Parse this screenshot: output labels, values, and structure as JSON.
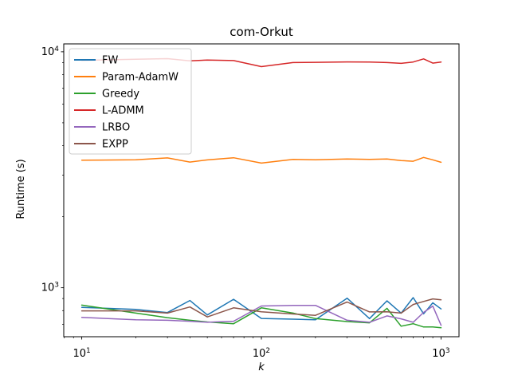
{
  "title": "com-Orkut",
  "chart_data": {
    "type": "line",
    "title": "com-Orkut",
    "xlabel": "k",
    "ylabel": "Runtime (s)",
    "xscale": "log",
    "yscale": "log",
    "xlim": [
      7.94,
      1259
    ],
    "ylim": [
      620,
      10800
    ],
    "grid": false,
    "legend_position": "upper left",
    "x": [
      10,
      20,
      30,
      40,
      50,
      70,
      100,
      150,
      200,
      300,
      400,
      500,
      600,
      700,
      800,
      900,
      1000
    ],
    "series": [
      {
        "name": "FW",
        "color": "#1f77b4",
        "values": [
          826,
          809,
          785,
          883,
          767,
          893,
          741,
          736,
          731,
          903,
          740,
          880,
          781,
          908,
          775,
          863,
          813
        ]
      },
      {
        "name": "Param-AdamW",
        "color": "#ff7f0e",
        "values": [
          3470,
          3485,
          3550,
          3410,
          3480,
          3555,
          3375,
          3500,
          3485,
          3515,
          3500,
          3515,
          3460,
          3435,
          3565,
          3485,
          3400
        ]
      },
      {
        "name": "Greedy",
        "color": "#2ca02c",
        "values": [
          844,
          781,
          747,
          728,
          716,
          704,
          822,
          781,
          740,
          719,
          710,
          818,
          687,
          704,
          682,
          682,
          677
        ]
      },
      {
        "name": "L-ADMM",
        "color": "#d62728",
        "values": [
          9200,
          9300,
          9350,
          9150,
          9230,
          9180,
          8650,
          9000,
          9020,
          9060,
          9050,
          9000,
          8930,
          9050,
          9330,
          8950,
          9050
        ]
      },
      {
        "name": "LRBO",
        "color": "#9467bd",
        "values": [
          749,
          731,
          728,
          721,
          714,
          721,
          837,
          842,
          842,
          728,
          714,
          760,
          738,
          714,
          786,
          836,
          693
        ]
      },
      {
        "name": "EXPP",
        "color": "#8c564b",
        "values": [
          798,
          798,
          781,
          829,
          752,
          822,
          791,
          774,
          764,
          870,
          790,
          791,
          781,
          849,
          875,
          897,
          889
        ]
      }
    ],
    "x_ticks": [
      {
        "base": "10",
        "exp": "1",
        "value": 10
      },
      {
        "base": "10",
        "exp": "2",
        "value": 100
      },
      {
        "base": "10",
        "exp": "3",
        "value": 1000
      }
    ],
    "y_ticks": [
      {
        "base": "10",
        "exp": "3",
        "value": 1000
      },
      {
        "base": "10",
        "exp": "4",
        "value": 10000
      }
    ],
    "colors": {
      "spine": "#000000",
      "legend_border": "#cccccc",
      "legend_fill": "#ffffff"
    }
  }
}
